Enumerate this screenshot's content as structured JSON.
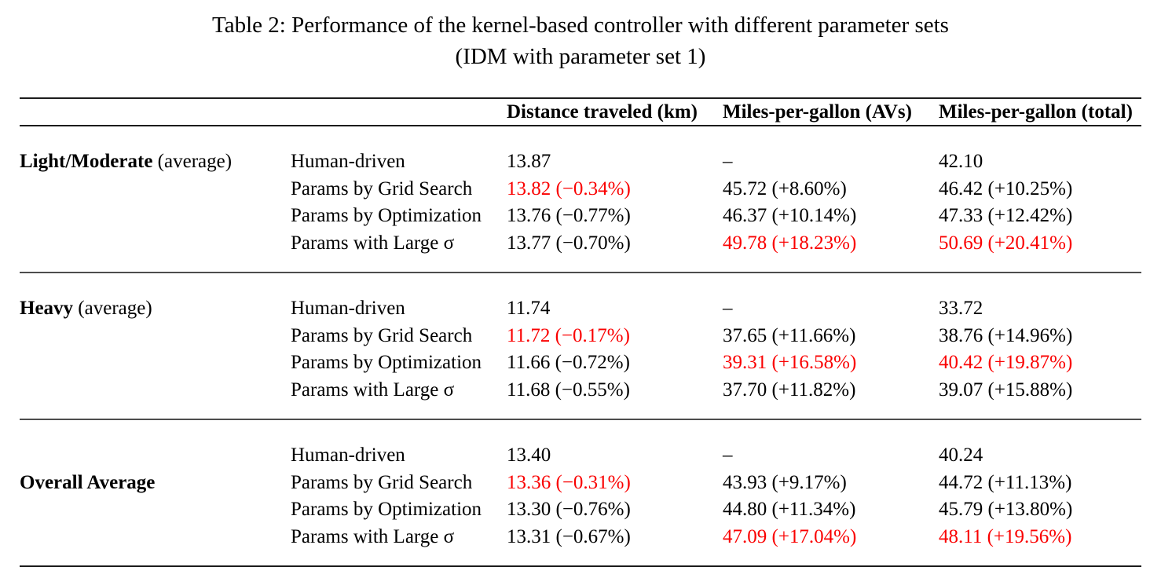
{
  "title": {
    "line1": "Table 2: Performance of the kernel-based controller with different parameter sets",
    "line2": "(IDM with parameter set 1)"
  },
  "colors": {
    "highlight_red": "#fa0000",
    "text": "#000000"
  },
  "chart_data": {
    "type": "table",
    "title": "Table 2: Performance of the kernel-based controller with different parameter sets (IDM with parameter set 1)",
    "columns": [
      "Distance traveled (km)",
      "Miles-per-gallon (AVs)",
      "Miles-per-gallon (total)"
    ],
    "groups": [
      {
        "label_bold": "Light/Moderate",
        "label_suffix": " (average)",
        "label_row_index": 0,
        "rows": [
          {
            "name": "Human-driven",
            "cells": [
              {
                "t": "13.87",
                "red": false
              },
              {
                "t": "–",
                "red": false
              },
              {
                "t": "42.10",
                "red": false
              }
            ]
          },
          {
            "name": "Params by Grid Search",
            "cells": [
              {
                "t": "13.82 (−0.34%)",
                "red": true
              },
              {
                "t": "45.72 (+8.60%)",
                "red": false
              },
              {
                "t": "46.42 (+10.25%)",
                "red": false
              }
            ]
          },
          {
            "name": "Params by Optimization",
            "cells": [
              {
                "t": "13.76 (−0.77%)",
                "red": false
              },
              {
                "t": "46.37 (+10.14%)",
                "red": false
              },
              {
                "t": "47.33 (+12.42%)",
                "red": false
              }
            ]
          },
          {
            "name": "Params with Large σ",
            "cells": [
              {
                "t": "13.77 (−0.70%)",
                "red": false
              },
              {
                "t": "49.78 (+18.23%)",
                "red": true
              },
              {
                "t": "50.69 (+20.41%)",
                "red": true
              }
            ]
          }
        ]
      },
      {
        "label_bold": "Heavy",
        "label_suffix": " (average)",
        "label_row_index": 0,
        "rows": [
          {
            "name": "Human-driven",
            "cells": [
              {
                "t": "11.74",
                "red": false
              },
              {
                "t": "–",
                "red": false
              },
              {
                "t": "33.72",
                "red": false
              }
            ]
          },
          {
            "name": "Params by Grid Search",
            "cells": [
              {
                "t": "11.72 (−0.17%)",
                "red": true
              },
              {
                "t": "37.65 (+11.66%)",
                "red": false
              },
              {
                "t": "38.76 (+14.96%)",
                "red": false
              }
            ]
          },
          {
            "name": "Params by Optimization",
            "cells": [
              {
                "t": "11.66 (−0.72%)",
                "red": false
              },
              {
                "t": "39.31 (+16.58%)",
                "red": true
              },
              {
                "t": "40.42 (+19.87%)",
                "red": true
              }
            ]
          },
          {
            "name": "Params with Large σ",
            "cells": [
              {
                "t": "11.68 (−0.55%)",
                "red": false
              },
              {
                "t": "37.70 (+11.82%)",
                "red": false
              },
              {
                "t": "39.07 (+15.88%)",
                "red": false
              }
            ]
          }
        ]
      },
      {
        "label_bold": "Overall Average",
        "label_suffix": "",
        "label_row_index": 1,
        "rows": [
          {
            "name": "Human-driven",
            "cells": [
              {
                "t": "13.40",
                "red": false
              },
              {
                "t": "–",
                "red": false
              },
              {
                "t": "40.24",
                "red": false
              }
            ]
          },
          {
            "name": "Params by Grid Search",
            "cells": [
              {
                "t": "13.36 (−0.31%)",
                "red": true
              },
              {
                "t": "43.93 (+9.17%)",
                "red": false
              },
              {
                "t": "44.72 (+11.13%)",
                "red": false
              }
            ]
          },
          {
            "name": "Params by Optimization",
            "cells": [
              {
                "t": "13.30 (−0.76%)",
                "red": false
              },
              {
                "t": "44.80 (+11.34%)",
                "red": false
              },
              {
                "t": "45.79 (+13.80%)",
                "red": false
              }
            ]
          },
          {
            "name": "Params with Large σ",
            "cells": [
              {
                "t": "13.31 (−0.67%)",
                "red": false
              },
              {
                "t": "47.09 (+17.04%)",
                "red": true
              },
              {
                "t": "48.11 (+19.56%)",
                "red": true
              }
            ]
          }
        ]
      }
    ]
  }
}
